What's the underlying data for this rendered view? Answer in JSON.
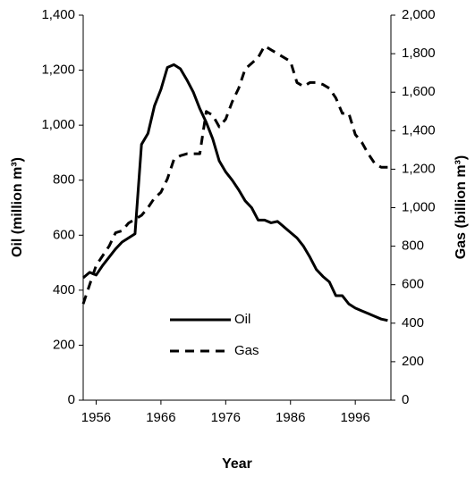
{
  "chart_data": {
    "type": "line",
    "x_label": "Year",
    "y_label": "Oil (million m³)",
    "y2_label": "Gas (billion m³)",
    "x": [
      1954,
      1955,
      1956,
      1957,
      1958,
      1959,
      1960,
      1961,
      1962,
      1963,
      1964,
      1965,
      1966,
      1967,
      1968,
      1969,
      1970,
      1971,
      1972,
      1973,
      1974,
      1975,
      1976,
      1977,
      1978,
      1979,
      1980,
      1981,
      1982,
      1983,
      1984,
      1985,
      1986,
      1987,
      1988,
      1989,
      1990,
      1991,
      1992,
      1993,
      1994,
      1995,
      1996,
      1997,
      1998,
      1999,
      2000,
      2001
    ],
    "series": [
      {
        "name": "Oil",
        "color": "#000000",
        "dash": false,
        "values": [
          445,
          465,
          455,
          490,
          520,
          550,
          575,
          590,
          605,
          930,
          970,
          1070,
          1130,
          1210,
          1220,
          1205,
          1165,
          1120,
          1060,
          1010,
          950,
          870,
          830,
          800,
          765,
          725,
          700,
          655,
          655,
          645,
          650,
          630,
          610,
          590,
          560,
          520,
          475,
          450,
          430,
          380,
          380,
          350,
          335,
          325,
          315,
          305,
          295,
          290
        ]
      },
      {
        "name": "Gas",
        "color": "#000000",
        "dash": true,
        "axis": "y2",
        "values": [
          500,
          600,
          700,
          750,
          800,
          870,
          880,
          920,
          940,
          960,
          1000,
          1050,
          1080,
          1150,
          1250,
          1270,
          1280,
          1280,
          1280,
          1500,
          1480,
          1420,
          1460,
          1550,
          1620,
          1720,
          1750,
          1780,
          1840,
          1820,
          1800,
          1780,
          1760,
          1650,
          1630,
          1650,
          1650,
          1640,
          1620,
          1570,
          1490,
          1490,
          1380,
          1340,
          1280,
          1230,
          1210,
          1210
        ]
      }
    ],
    "xlim": [
      1954,
      2001.5
    ],
    "xticks": [
      1956,
      1966,
      1976,
      1986,
      1996
    ],
    "ylim": [
      0,
      1400
    ],
    "yticks": [
      0,
      200,
      400,
      600,
      800,
      {
        "value": 1000,
        "label": "1,000"
      },
      {
        "value": 1200,
        "label": "1,200"
      },
      {
        "value": 1400,
        "label": "1,400"
      }
    ],
    "y2lim": [
      0,
      2000
    ],
    "y2ticks": [
      0,
      200,
      400,
      600,
      800,
      {
        "value": 1000,
        "label": "1,000"
      },
      {
        "value": 1200,
        "label": "1,200"
      },
      {
        "value": 1400,
        "label": "1,400"
      },
      {
        "value": 1600,
        "label": "1,600"
      },
      {
        "value": 1800,
        "label": "1,800"
      },
      {
        "value": 2000,
        "label": "2,000"
      }
    ],
    "grid": false
  }
}
